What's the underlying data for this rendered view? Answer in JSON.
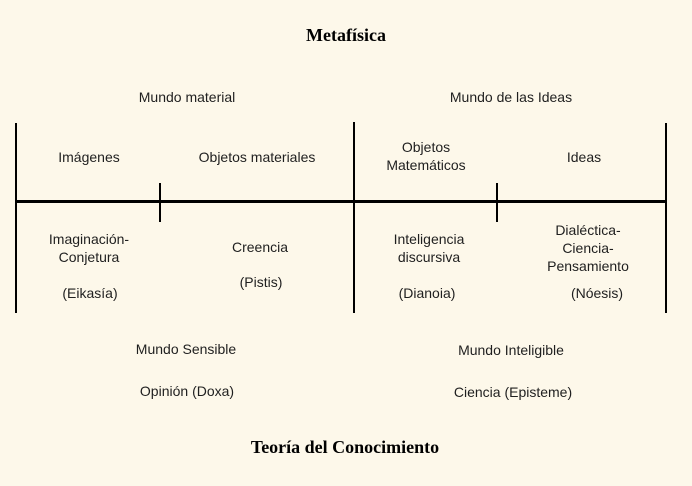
{
  "page": {
    "background_color": "#FDF8EA",
    "line_color": "#000000",
    "text_color": "#1F1F1F"
  },
  "titles": {
    "metaphysics": "Metafísica",
    "epistemology": "Teoría del Conocimiento"
  },
  "world_headers": {
    "material": "Mundo material",
    "ideas": "Mundo de las Ideas"
  },
  "segments": [
    {
      "object": "Imágenes",
      "faculty": "Imaginación-\nConjetura",
      "greek_term": "(Eikasía)"
    },
    {
      "object": "Objetos materiales",
      "faculty": "Creencia",
      "greek_term": "(Pistis)"
    },
    {
      "object": "Objetos\nMatemáticos",
      "faculty": "Inteligencia\ndiscursiva",
      "greek_term": "(Dianoia)"
    },
    {
      "object": "Ideas",
      "faculty": "Dialéctica-Ciencia-\nPensamiento",
      "greek_term": "(Nóesis)"
    }
  ],
  "footer": {
    "sensible_world": "Mundo Sensible",
    "intelligible_world": "Mundo Inteligible",
    "opinion": "Opinión (Doxa)",
    "science": "Ciencia (Episteme)"
  }
}
